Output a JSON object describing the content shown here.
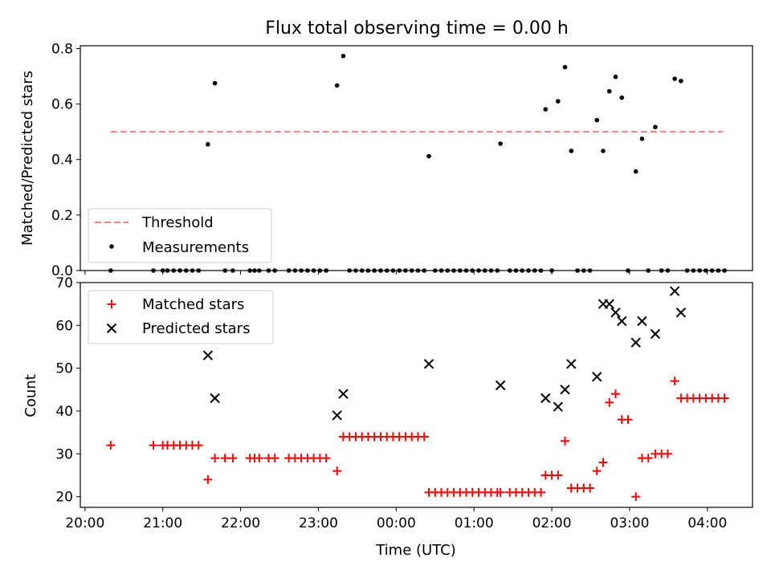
{
  "title": "Flux total observing time = 0.00 h",
  "colors": {
    "threshold": "#ff7f7f",
    "measurements": "#000000",
    "matched": "#ff0000",
    "predicted": "#000000"
  },
  "x_axis": {
    "label": "Time (UTC)",
    "range_hours": [
      -0.06,
      8.58
    ],
    "ticks": [
      {
        "value": 0,
        "label": "20:00"
      },
      {
        "value": 1,
        "label": "21:00"
      },
      {
        "value": 2,
        "label": "22:00"
      },
      {
        "value": 3,
        "label": "23:00"
      },
      {
        "value": 4,
        "label": "00:00"
      },
      {
        "value": 5,
        "label": "01:00"
      },
      {
        "value": 6,
        "label": "02:00"
      },
      {
        "value": 7,
        "label": "03:00"
      },
      {
        "value": 8,
        "label": "04:00"
      }
    ]
  },
  "chart_data": [
    {
      "type": "scatter",
      "xlabel": "",
      "ylabel": "Matched/Predicted stars",
      "ylim": [
        0,
        0.81
      ],
      "yticks": [
        {
          "value": 0.0,
          "label": "0.0"
        },
        {
          "value": 0.2,
          "label": "0.2"
        },
        {
          "value": 0.4,
          "label": "0.4"
        },
        {
          "value": 0.6,
          "label": "0.6"
        },
        {
          "value": 0.8,
          "label": "0.8"
        }
      ],
      "legend": {
        "position": "lower-left",
        "entries": [
          "Threshold",
          "Measurements"
        ]
      },
      "threshold": {
        "name": "Threshold",
        "value": 0.5,
        "x_range": [
          0.33,
          8.2
        ]
      },
      "series": [
        {
          "name": "Measurements",
          "points": [
            [
              0.33,
              0
            ],
            [
              0.88,
              0
            ],
            [
              1.0,
              0
            ],
            [
              1.06,
              0
            ],
            [
              1.14,
              0
            ],
            [
              1.22,
              0
            ],
            [
              1.3,
              0
            ],
            [
              1.38,
              0
            ],
            [
              1.46,
              0
            ],
            [
              1.58,
              0.455
            ],
            [
              1.67,
              0.675
            ],
            [
              1.8,
              0
            ],
            [
              1.9,
              0
            ],
            [
              2.12,
              0
            ],
            [
              2.18,
              0
            ],
            [
              2.24,
              0
            ],
            [
              2.36,
              0
            ],
            [
              2.44,
              0
            ],
            [
              2.62,
              0
            ],
            [
              2.7,
              0
            ],
            [
              2.78,
              0
            ],
            [
              2.86,
              0
            ],
            [
              2.94,
              0
            ],
            [
              3.02,
              0
            ],
            [
              3.1,
              0
            ],
            [
              3.24,
              0.667
            ],
            [
              3.32,
              0.773
            ],
            [
              3.4,
              0
            ],
            [
              3.48,
              0
            ],
            [
              3.56,
              0
            ],
            [
              3.64,
              0
            ],
            [
              3.72,
              0
            ],
            [
              3.8,
              0
            ],
            [
              3.88,
              0
            ],
            [
              3.96,
              0
            ],
            [
              4.04,
              0
            ],
            [
              4.12,
              0
            ],
            [
              4.2,
              0
            ],
            [
              4.28,
              0
            ],
            [
              4.36,
              0
            ],
            [
              4.42,
              0.412
            ],
            [
              4.5,
              0
            ],
            [
              4.58,
              0
            ],
            [
              4.66,
              0
            ],
            [
              4.74,
              0
            ],
            [
              4.82,
              0
            ],
            [
              4.9,
              0
            ],
            [
              4.98,
              0
            ],
            [
              5.06,
              0
            ],
            [
              5.14,
              0
            ],
            [
              5.22,
              0
            ],
            [
              5.3,
              0
            ],
            [
              5.34,
              0.457
            ],
            [
              5.46,
              0
            ],
            [
              5.54,
              0
            ],
            [
              5.62,
              0
            ],
            [
              5.7,
              0
            ],
            [
              5.78,
              0
            ],
            [
              5.86,
              0
            ],
            [
              5.92,
              0.581
            ],
            [
              6.0,
              0
            ],
            [
              6.08,
              0.61
            ],
            [
              6.17,
              0.733
            ],
            [
              6.25,
              0.431
            ],
            [
              6.33,
              0
            ],
            [
              6.41,
              0
            ],
            [
              6.49,
              0
            ],
            [
              6.58,
              0.542
            ],
            [
              6.66,
              0.431
            ],
            [
              6.74,
              0.646
            ],
            [
              6.82,
              0.698
            ],
            [
              6.9,
              0.623
            ],
            [
              6.98,
              0
            ],
            [
              7.08,
              0.357
            ],
            [
              7.16,
              0.475
            ],
            [
              7.24,
              0
            ],
            [
              7.33,
              0.517
            ],
            [
              7.41,
              0
            ],
            [
              7.49,
              0
            ],
            [
              7.58,
              0.691
            ],
            [
              7.66,
              0.683
            ],
            [
              7.74,
              0
            ],
            [
              7.82,
              0
            ],
            [
              7.9,
              0
            ],
            [
              7.98,
              0
            ],
            [
              8.06,
              0
            ],
            [
              8.14,
              0
            ],
            [
              8.22,
              0
            ]
          ]
        }
      ]
    },
    {
      "type": "scatter",
      "xlabel": "Time (UTC)",
      "ylabel": "Count",
      "ylim": [
        17.5,
        70
      ],
      "yticks": [
        {
          "value": 20,
          "label": "20"
        },
        {
          "value": 30,
          "label": "30"
        },
        {
          "value": 40,
          "label": "40"
        },
        {
          "value": 50,
          "label": "50"
        },
        {
          "value": 60,
          "label": "60"
        },
        {
          "value": 70,
          "label": "70"
        }
      ],
      "legend": {
        "position": "upper-left",
        "entries": [
          "Matched stars",
          "Predicted stars"
        ]
      },
      "series": [
        {
          "name": "Matched stars",
          "marker": "plus",
          "points": [
            [
              0.33,
              32
            ],
            [
              0.88,
              32
            ],
            [
              1.0,
              32
            ],
            [
              1.06,
              32
            ],
            [
              1.14,
              32
            ],
            [
              1.22,
              32
            ],
            [
              1.3,
              32
            ],
            [
              1.38,
              32
            ],
            [
              1.46,
              32
            ],
            [
              1.58,
              24
            ],
            [
              1.67,
              29
            ],
            [
              1.8,
              29
            ],
            [
              1.9,
              29
            ],
            [
              2.12,
              29
            ],
            [
              2.18,
              29
            ],
            [
              2.24,
              29
            ],
            [
              2.36,
              29
            ],
            [
              2.44,
              29
            ],
            [
              2.62,
              29
            ],
            [
              2.7,
              29
            ],
            [
              2.78,
              29
            ],
            [
              2.86,
              29
            ],
            [
              2.94,
              29
            ],
            [
              3.02,
              29
            ],
            [
              3.1,
              29
            ],
            [
              3.24,
              26
            ],
            [
              3.32,
              34
            ],
            [
              3.4,
              34
            ],
            [
              3.48,
              34
            ],
            [
              3.56,
              34
            ],
            [
              3.64,
              34
            ],
            [
              3.72,
              34
            ],
            [
              3.8,
              34
            ],
            [
              3.88,
              34
            ],
            [
              3.96,
              34
            ],
            [
              4.04,
              34
            ],
            [
              4.12,
              34
            ],
            [
              4.2,
              34
            ],
            [
              4.28,
              34
            ],
            [
              4.36,
              34
            ],
            [
              4.42,
              21
            ],
            [
              4.5,
              21
            ],
            [
              4.58,
              21
            ],
            [
              4.66,
              21
            ],
            [
              4.74,
              21
            ],
            [
              4.82,
              21
            ],
            [
              4.9,
              21
            ],
            [
              4.98,
              21
            ],
            [
              5.06,
              21
            ],
            [
              5.14,
              21
            ],
            [
              5.22,
              21
            ],
            [
              5.3,
              21
            ],
            [
              5.34,
              21
            ],
            [
              5.46,
              21
            ],
            [
              5.54,
              21
            ],
            [
              5.62,
              21
            ],
            [
              5.7,
              21
            ],
            [
              5.78,
              21
            ],
            [
              5.86,
              21
            ],
            [
              5.92,
              25
            ],
            [
              6.0,
              25
            ],
            [
              6.08,
              25
            ],
            [
              6.17,
              33
            ],
            [
              6.25,
              22
            ],
            [
              6.33,
              22
            ],
            [
              6.41,
              22
            ],
            [
              6.49,
              22
            ],
            [
              6.58,
              26
            ],
            [
              6.66,
              28
            ],
            [
              6.74,
              42
            ],
            [
              6.82,
              44
            ],
            [
              6.9,
              38
            ],
            [
              6.98,
              38
            ],
            [
              7.08,
              20
            ],
            [
              7.16,
              29
            ],
            [
              7.24,
              29
            ],
            [
              7.33,
              30
            ],
            [
              7.41,
              30
            ],
            [
              7.49,
              30
            ],
            [
              7.58,
              47
            ],
            [
              7.66,
              43
            ],
            [
              7.74,
              43
            ],
            [
              7.82,
              43
            ],
            [
              7.9,
              43
            ],
            [
              7.98,
              43
            ],
            [
              8.06,
              43
            ],
            [
              8.14,
              43
            ],
            [
              8.22,
              43
            ]
          ]
        },
        {
          "name": "Predicted stars",
          "marker": "x",
          "points": [
            [
              1.58,
              53
            ],
            [
              1.67,
              43
            ],
            [
              3.24,
              39
            ],
            [
              3.32,
              44
            ],
            [
              4.42,
              51
            ],
            [
              5.34,
              46
            ],
            [
              5.92,
              43
            ],
            [
              6.08,
              41
            ],
            [
              6.17,
              45
            ],
            [
              6.25,
              51
            ],
            [
              6.58,
              48
            ],
            [
              6.66,
              65
            ],
            [
              6.74,
              65
            ],
            [
              6.82,
              63
            ],
            [
              6.9,
              61
            ],
            [
              7.08,
              56
            ],
            [
              7.16,
              61
            ],
            [
              7.33,
              58
            ],
            [
              7.58,
              68
            ],
            [
              7.66,
              63
            ]
          ]
        }
      ]
    }
  ]
}
